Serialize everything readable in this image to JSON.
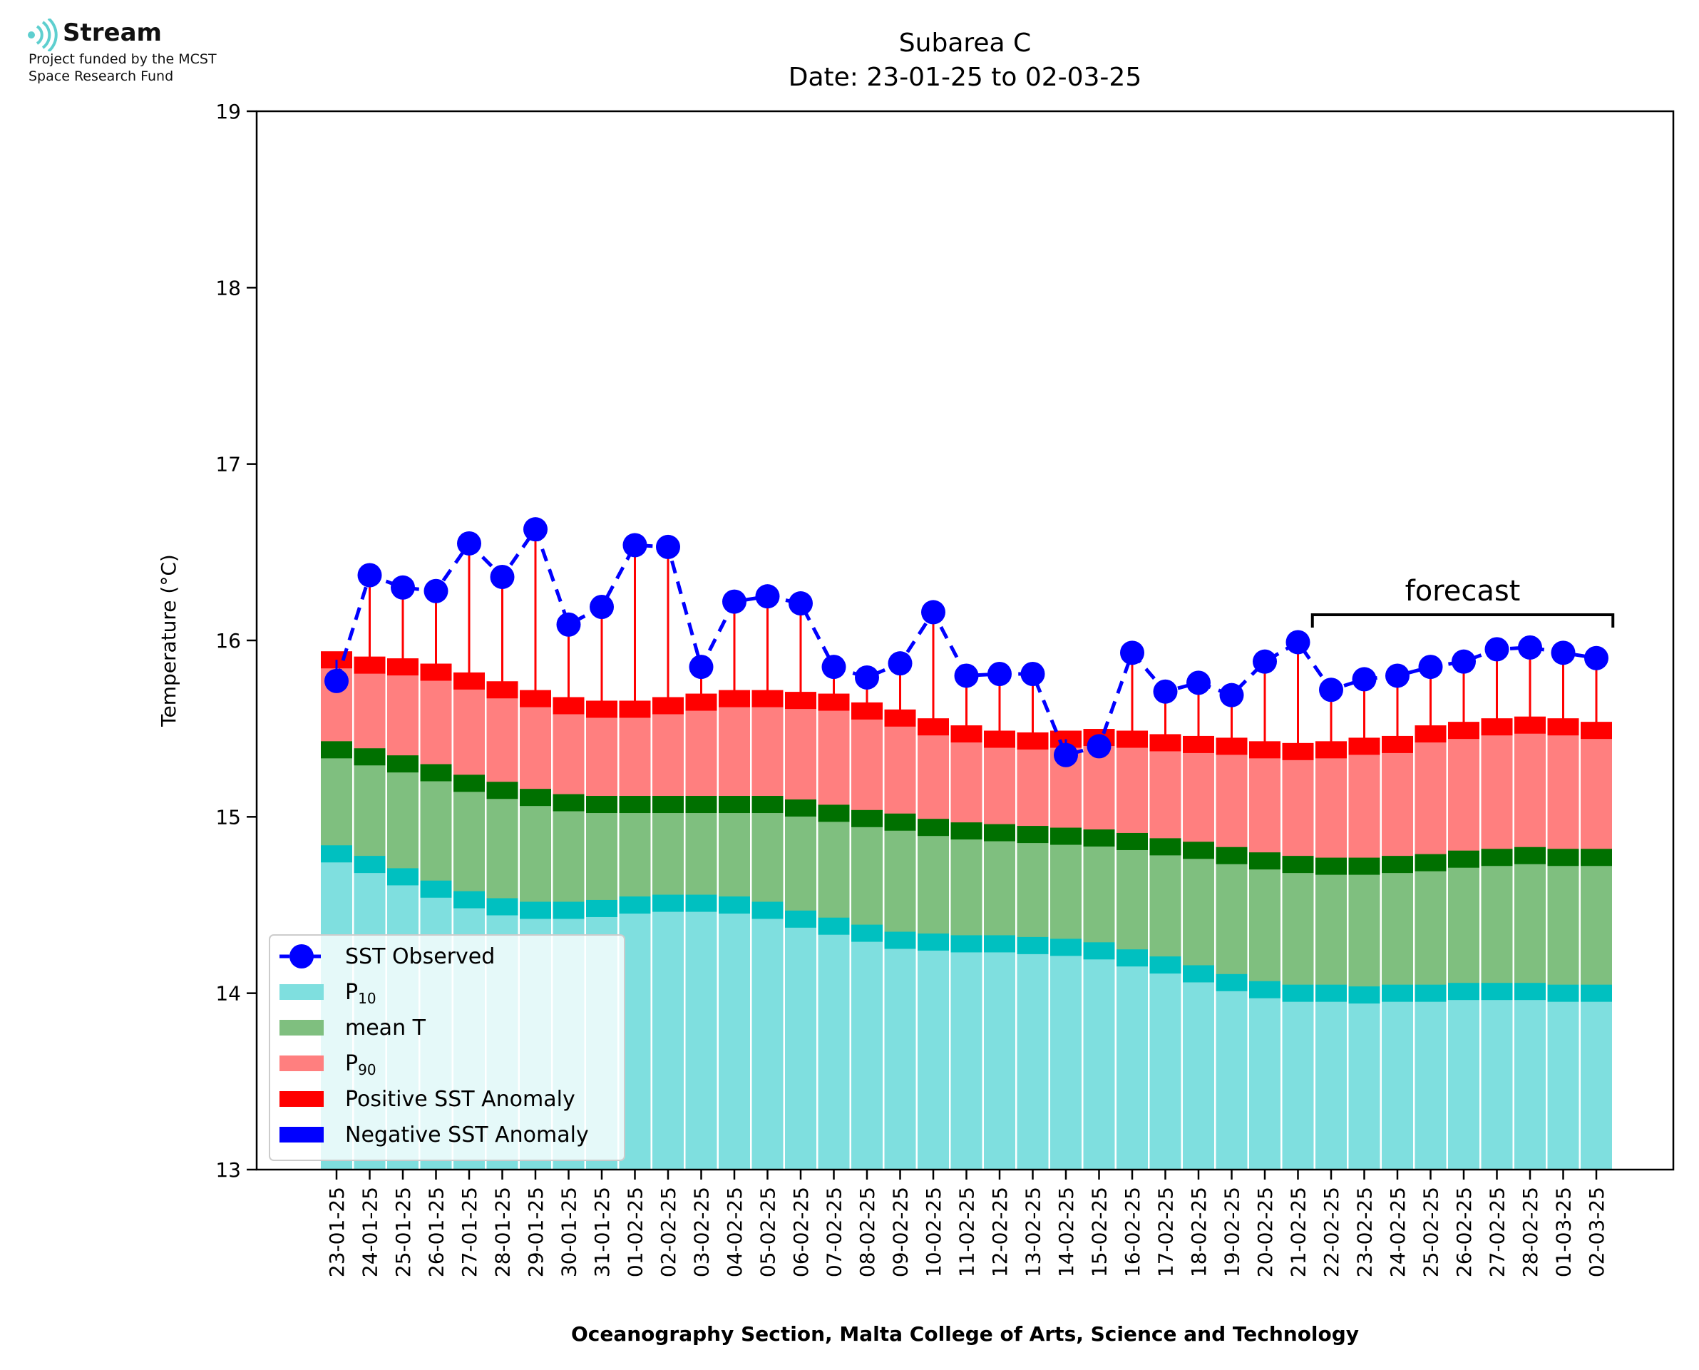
{
  "logo": {
    "name": "Stream",
    "line1": "Project funded by the MCST",
    "line2": "Space Research Fund",
    "icon": "signal-waves-icon",
    "color": "#5ecfcf"
  },
  "chart_data": {
    "type": "bar",
    "title": "Subarea C",
    "subtitle": "Date: 23-01-25 to 02-03-25",
    "xlabel": "Oceanography Section, Malta College of Arts, Science and Technology",
    "ylabel": "Temperature (°C)",
    "ylim": [
      13,
      19
    ],
    "yticks": [
      13,
      14,
      15,
      16,
      17,
      18,
      19
    ],
    "grid": false,
    "legend_position": "lower-left",
    "annotation": "forecast",
    "forecast_range": [
      "22-02-25",
      "02-03-25"
    ],
    "categories": [
      "23-01-25",
      "24-01-25",
      "25-01-25",
      "26-01-25",
      "27-01-25",
      "28-01-25",
      "29-01-25",
      "30-01-25",
      "31-01-25",
      "01-02-25",
      "02-02-25",
      "03-02-25",
      "04-02-25",
      "05-02-25",
      "06-02-25",
      "07-02-25",
      "08-02-25",
      "09-02-25",
      "10-02-25",
      "11-02-25",
      "12-02-25",
      "13-02-25",
      "14-02-25",
      "15-02-25",
      "16-02-25",
      "17-02-25",
      "18-02-25",
      "19-02-25",
      "20-02-25",
      "21-02-25",
      "22-02-25",
      "23-02-25",
      "24-02-25",
      "25-02-25",
      "26-02-25",
      "27-02-25",
      "28-02-25",
      "01-03-25",
      "02-03-25"
    ],
    "series": [
      {
        "name": "SST Observed",
        "color": "#0000ff",
        "values": [
          15.77,
          16.37,
          16.3,
          16.28,
          16.55,
          16.36,
          16.63,
          16.09,
          16.19,
          16.54,
          16.53,
          15.85,
          16.22,
          16.25,
          16.21,
          15.85,
          15.79,
          15.87,
          16.16,
          15.8,
          15.81,
          15.81,
          15.35,
          15.4,
          15.93,
          15.71,
          15.76,
          15.69,
          15.88,
          15.99,
          15.72,
          15.78,
          15.8,
          15.85,
          15.88,
          15.95,
          15.96,
          15.93,
          15.9
        ]
      },
      {
        "name": "P10",
        "name_main": "P",
        "name_sub": "10",
        "color": "#7fdfdf",
        "edge_color": "#00c0c0",
        "values": [
          14.79,
          14.73,
          14.66,
          14.59,
          14.53,
          14.49,
          14.47,
          14.47,
          14.48,
          14.5,
          14.51,
          14.51,
          14.5,
          14.47,
          14.42,
          14.38,
          14.34,
          14.3,
          14.29,
          14.28,
          14.28,
          14.27,
          14.26,
          14.24,
          14.2,
          14.16,
          14.11,
          14.06,
          14.02,
          14.0,
          14.0,
          13.99,
          14.0,
          14.0,
          14.01,
          14.01,
          14.01,
          14.0,
          14.0
        ]
      },
      {
        "name": "mean T",
        "color": "#7fbf7f",
        "edge_color": "#007000",
        "values": [
          15.38,
          15.34,
          15.3,
          15.25,
          15.19,
          15.15,
          15.11,
          15.08,
          15.07,
          15.07,
          15.07,
          15.07,
          15.07,
          15.07,
          15.05,
          15.02,
          14.99,
          14.97,
          14.94,
          14.92,
          14.91,
          14.9,
          14.89,
          14.88,
          14.86,
          14.83,
          14.81,
          14.78,
          14.75,
          14.73,
          14.72,
          14.72,
          14.73,
          14.74,
          14.76,
          14.77,
          14.78,
          14.77,
          14.77
        ]
      },
      {
        "name": "P90",
        "name_main": "P",
        "name_sub": "90",
        "color": "#ff7f7f",
        "edge_color": "#ff0000",
        "values": [
          15.89,
          15.86,
          15.85,
          15.82,
          15.77,
          15.72,
          15.67,
          15.63,
          15.61,
          15.61,
          15.63,
          15.65,
          15.67,
          15.67,
          15.66,
          15.65,
          15.6,
          15.56,
          15.51,
          15.47,
          15.44,
          15.43,
          15.44,
          15.45,
          15.44,
          15.42,
          15.41,
          15.4,
          15.38,
          15.37,
          15.38,
          15.4,
          15.41,
          15.47,
          15.49,
          15.51,
          15.52,
          15.51,
          15.49
        ]
      },
      {
        "name": "Positive SST Anomaly",
        "color": "#ff0000"
      },
      {
        "name": "Negative SST Anomaly",
        "color": "#0000ff"
      }
    ]
  }
}
